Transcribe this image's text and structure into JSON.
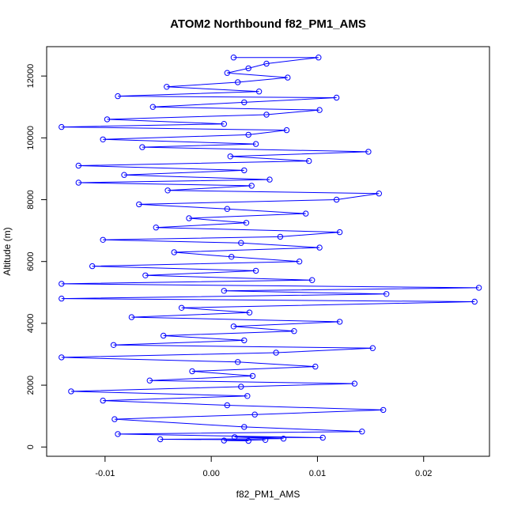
{
  "chart_data": {
    "type": "scatter",
    "title": "ATOM2 Northbound f82_PM1_AMS",
    "xlabel": "f82_PM1_AMS",
    "ylabel": "Altitude (m)",
    "xlim": [
      -0.0155,
      0.0262
    ],
    "ylim": [
      -300,
      12950
    ],
    "x_ticks": [
      -0.01,
      0.0,
      0.01,
      0.02
    ],
    "x_tick_labels": [
      "-0.01",
      "0.00",
      "0.01",
      "0.02"
    ],
    "y_ticks": [
      0,
      2000,
      4000,
      6000,
      8000,
      10000,
      12000
    ],
    "y_tick_labels": [
      "0",
      "2000",
      "4000",
      "6000",
      "8000",
      "10000",
      "12000"
    ],
    "grid": false,
    "legend": "none",
    "series_color": "#0000ff",
    "marker": "open-circle",
    "connected": true,
    "series": [
      {
        "points": [
          [
            0.0035,
            200
          ],
          [
            0.0012,
            210
          ],
          [
            0.0051,
            230
          ],
          [
            -0.0048,
            250
          ],
          [
            0.0068,
            270
          ],
          [
            0.0022,
            320
          ],
          [
            0.0105,
            300
          ],
          [
            -0.0088,
            420
          ],
          [
            0.0142,
            500
          ],
          [
            0.0031,
            650
          ],
          [
            -0.0091,
            900
          ],
          [
            0.0041,
            1050
          ],
          [
            0.0162,
            1200
          ],
          [
            0.0015,
            1350
          ],
          [
            -0.0102,
            1500
          ],
          [
            0.0034,
            1650
          ],
          [
            -0.0132,
            1800
          ],
          [
            0.0028,
            1950
          ],
          [
            0.0135,
            2050
          ],
          [
            -0.0058,
            2150
          ],
          [
            0.0039,
            2300
          ],
          [
            -0.0018,
            2450
          ],
          [
            0.0098,
            2600
          ],
          [
            0.0025,
            2750
          ],
          [
            -0.0141,
            2900
          ],
          [
            0.0061,
            3050
          ],
          [
            0.0152,
            3200
          ],
          [
            -0.0092,
            3300
          ],
          [
            0.0031,
            3450
          ],
          [
            -0.0045,
            3600
          ],
          [
            0.0078,
            3750
          ],
          [
            0.0021,
            3900
          ],
          [
            0.0121,
            4050
          ],
          [
            -0.0075,
            4200
          ],
          [
            0.0036,
            4350
          ],
          [
            -0.0028,
            4500
          ],
          [
            0.0248,
            4700
          ],
          [
            -0.0141,
            4800
          ],
          [
            0.0165,
            4950
          ],
          [
            0.0012,
            5050
          ],
          [
            0.0252,
            5150
          ],
          [
            -0.0141,
            5280
          ],
          [
            0.0095,
            5400
          ],
          [
            -0.0062,
            5550
          ],
          [
            0.0042,
            5700
          ],
          [
            -0.0112,
            5850
          ],
          [
            0.0083,
            6000
          ],
          [
            0.0019,
            6150
          ],
          [
            -0.0035,
            6300
          ],
          [
            0.0102,
            6450
          ],
          [
            0.0028,
            6600
          ],
          [
            -0.0102,
            6700
          ],
          [
            0.0065,
            6800
          ],
          [
            0.0121,
            6950
          ],
          [
            -0.0052,
            7100
          ],
          [
            0.0033,
            7250
          ],
          [
            -0.0021,
            7400
          ],
          [
            0.0089,
            7550
          ],
          [
            0.0015,
            7700
          ],
          [
            -0.0068,
            7850
          ],
          [
            0.0118,
            8000
          ],
          [
            0.0158,
            8200
          ],
          [
            -0.0041,
            8300
          ],
          [
            0.0038,
            8450
          ],
          [
            -0.0125,
            8550
          ],
          [
            0.0055,
            8650
          ],
          [
            -0.0082,
            8800
          ],
          [
            0.0031,
            8950
          ],
          [
            -0.0125,
            9100
          ],
          [
            0.0092,
            9250
          ],
          [
            0.0018,
            9400
          ],
          [
            0.0148,
            9550
          ],
          [
            -0.0065,
            9700
          ],
          [
            0.0042,
            9800
          ],
          [
            -0.0102,
            9950
          ],
          [
            0.0035,
            10100
          ],
          [
            0.0071,
            10250
          ],
          [
            -0.0141,
            10350
          ],
          [
            0.0012,
            10450
          ],
          [
            -0.0098,
            10600
          ],
          [
            0.0052,
            10750
          ],
          [
            0.0102,
            10900
          ],
          [
            -0.0055,
            11000
          ],
          [
            0.0031,
            11150
          ],
          [
            0.0118,
            11300
          ],
          [
            -0.0088,
            11350
          ],
          [
            0.0045,
            11500
          ],
          [
            -0.0042,
            11650
          ],
          [
            0.0025,
            11800
          ],
          [
            0.0072,
            11950
          ],
          [
            0.0015,
            12100
          ],
          [
            0.0035,
            12250
          ],
          [
            0.0052,
            12400
          ],
          [
            0.0101,
            12600
          ],
          [
            0.0021,
            12600
          ]
        ]
      }
    ]
  }
}
